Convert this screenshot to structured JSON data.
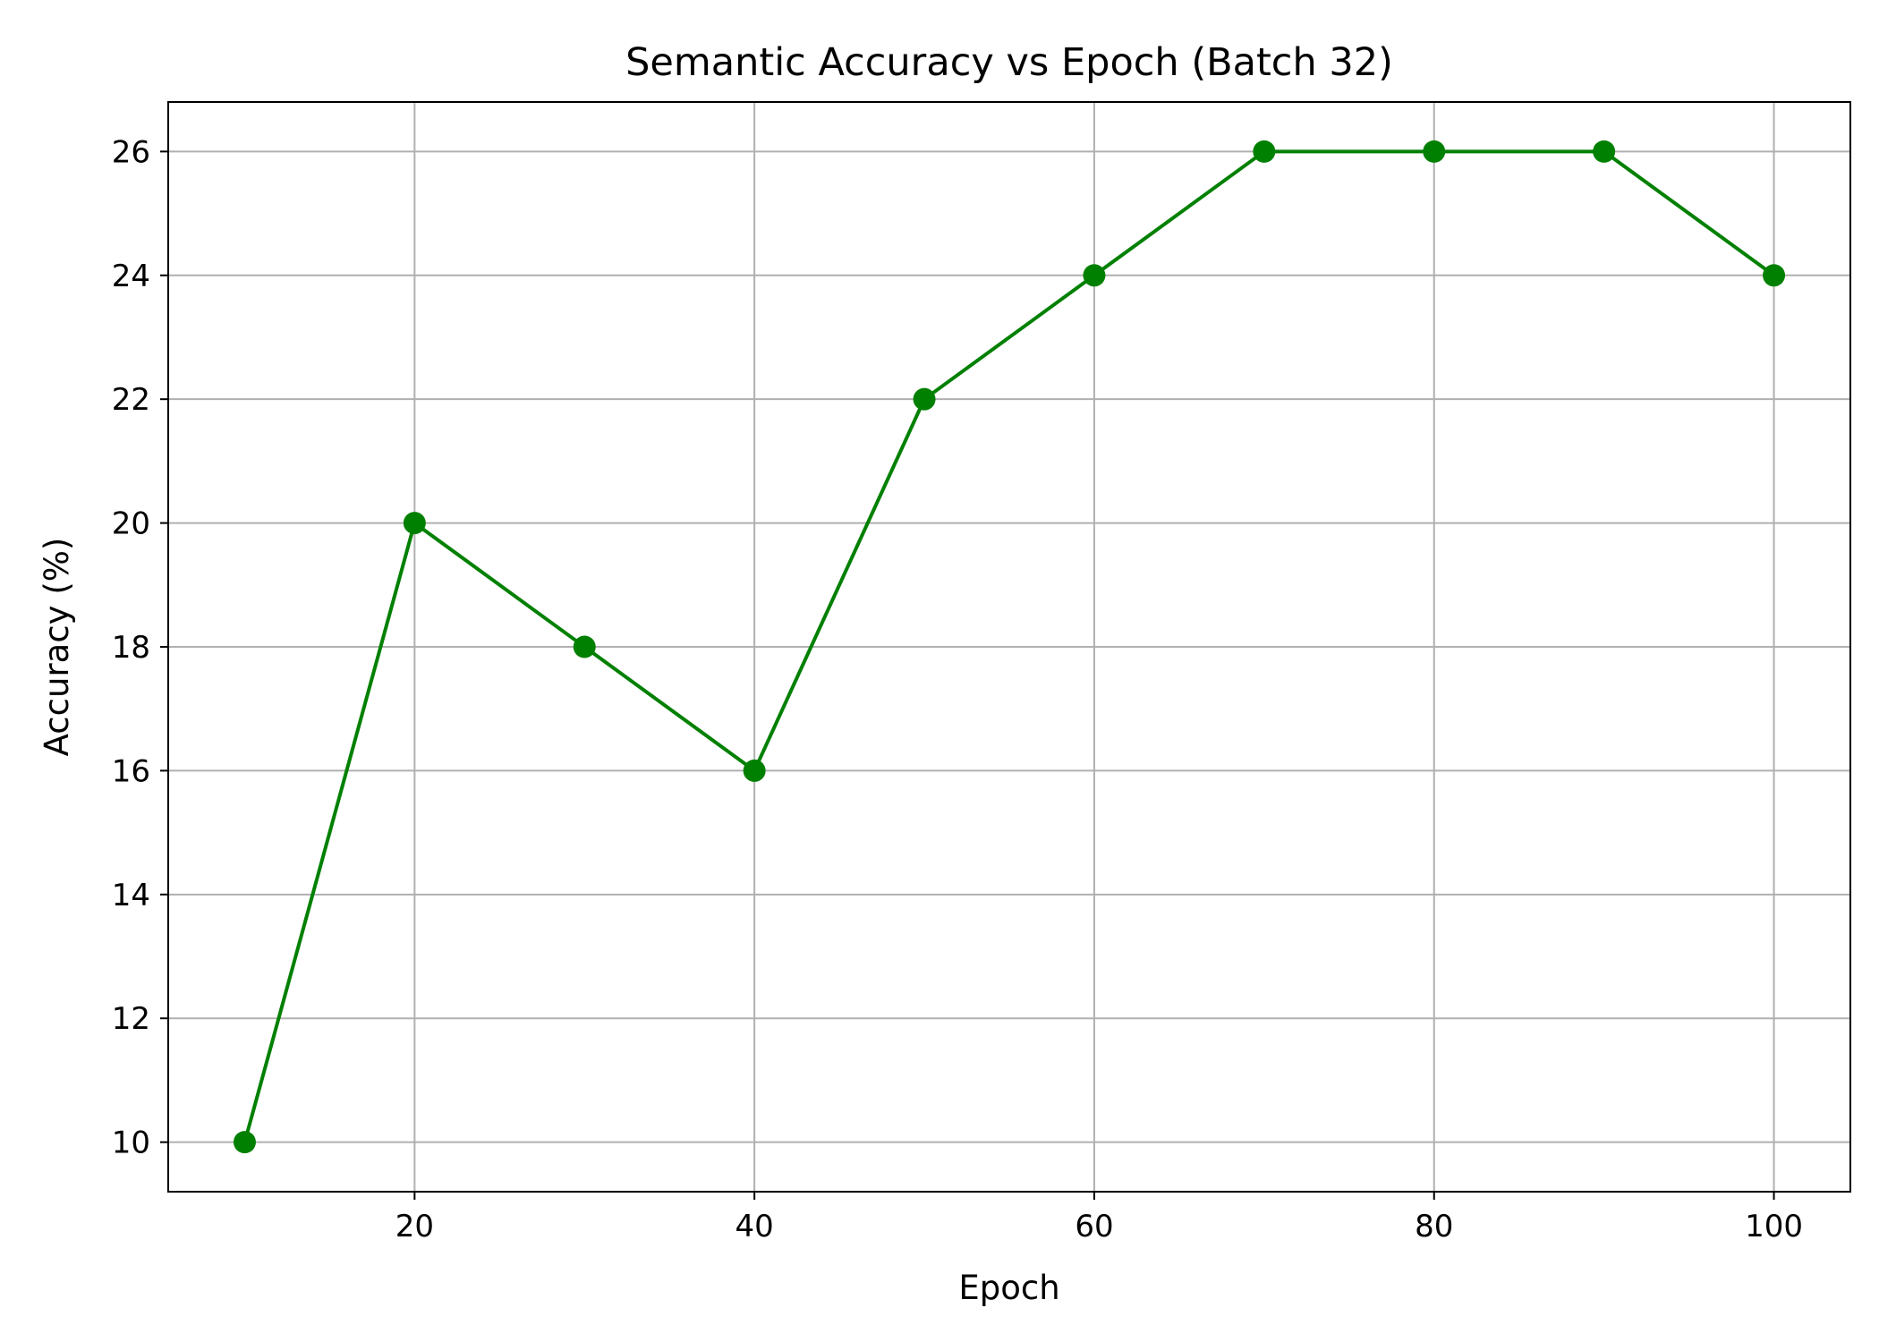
{
  "chart_data": {
    "type": "line",
    "title": "Semantic Accuracy vs Epoch (Batch 32)",
    "xlabel": "Epoch",
    "ylabel": "Accuracy (%)",
    "xlim": [
      5.5,
      104.5
    ],
    "ylim": [
      9.2,
      26.8
    ],
    "xticks": [
      20,
      40,
      60,
      80,
      100
    ],
    "yticks": [
      10,
      12,
      14,
      16,
      18,
      20,
      22,
      24,
      26
    ],
    "grid": true,
    "series": [
      {
        "color": "#008000",
        "marker": "circle",
        "x": [
          10,
          20,
          30,
          40,
          50,
          60,
          70,
          80,
          90,
          100
        ],
        "y": [
          10,
          20,
          18,
          16,
          22,
          24,
          26,
          26,
          26,
          24
        ]
      }
    ]
  }
}
